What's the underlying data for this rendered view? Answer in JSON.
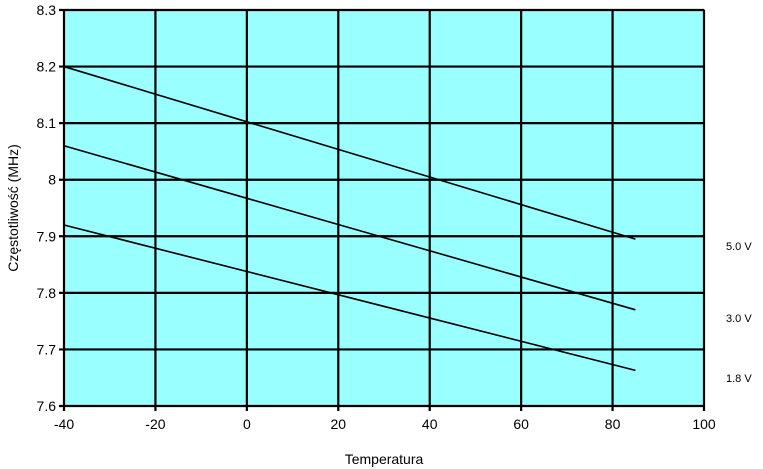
{
  "chart_data": {
    "type": "line",
    "xlabel": "Temperatura",
    "ylabel": "Częstotliwość (MHz)",
    "xlim": [
      -40,
      100
    ],
    "ylim": [
      7.6,
      8.3
    ],
    "x_ticks": [
      "-40",
      "-20",
      "0",
      "20",
      "40",
      "60",
      "80",
      "100"
    ],
    "y_ticks": [
      "7.6",
      "7.7",
      "7.8",
      "7.9",
      "8",
      "8.1",
      "8.2",
      "8.3"
    ],
    "grid": true,
    "colors": {
      "plot_background": "#99FFFF",
      "lines": "#000000",
      "grid": "#000000"
    },
    "series": [
      {
        "name": "5.0 V",
        "x": [
          -40,
          85
        ],
        "y": [
          8.2,
          7.895
        ]
      },
      {
        "name": "3.0 V",
        "x": [
          -40,
          85
        ],
        "y": [
          8.06,
          7.77
        ]
      },
      {
        "name": "1.8 V",
        "x": [
          -40,
          85
        ],
        "y": [
          7.92,
          7.663
        ]
      }
    ]
  }
}
